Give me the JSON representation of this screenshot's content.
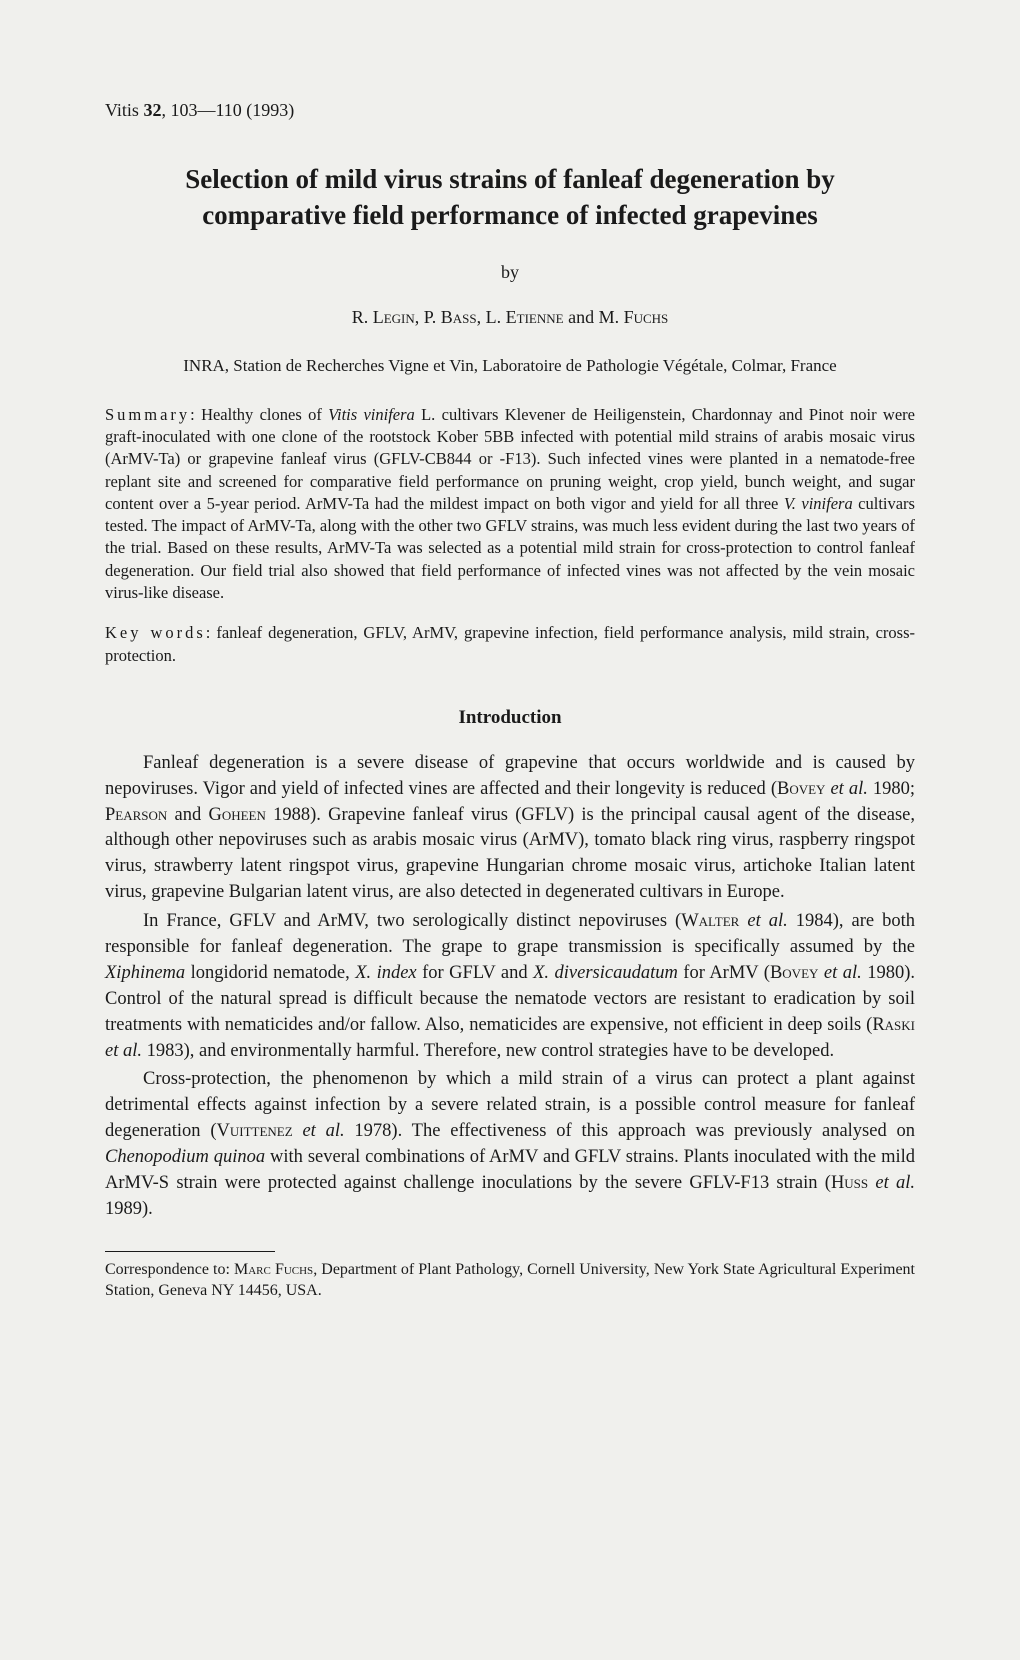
{
  "journal": {
    "name": "Vitis",
    "volume": "32",
    "pages": "103—110",
    "year": "(1993)"
  },
  "title": "Selection of mild virus strains of fanleaf degeneration by comparative field performance of infected grapevines",
  "byline": "by",
  "authors_html": "R. <span class=\"smallcaps\">Legin</span>, P. <span class=\"smallcaps\">Bass</span>, L. <span class=\"smallcaps\">Etienne</span> and M. <span class=\"smallcaps\">Fuchs</span>",
  "affiliation": "INRA, Station de Recherches Vigne et Vin, Laboratoire de Pathologie Végétale, Colmar, France",
  "summary_label": "Summary",
  "summary_html": ": Healthy clones of <span class=\"italic\">Vitis vinifera</span> L. cultivars Klevener de Heiligenstein, Chardonnay and Pinot noir were graft-inoculated with one clone of the rootstock Kober 5BB infected with potential mild strains of arabis mosaic virus (ArMV-Ta) or grapevine fanleaf virus (GFLV-CB844 or -F13). Such infected vines were planted in a nematode-free replant site and screened for comparative field performance on pruning weight, crop yield, bunch weight, and sugar content over a 5-year period. ArMV-Ta had the mildest impact on both vigor and yield for all three <span class=\"italic\">V. vinifera</span> cultivars tested. The impact of ArMV-Ta, along with the other two GFLV strains, was much less evident during the last two years of the trial. Based on these results, ArMV-Ta was selected as a potential mild strain for cross-protection to control fanleaf degeneration. Our field trial also showed that field performance of infected vines was not affected by the vein mosaic virus-like disease.",
  "keywords_label": "Key words",
  "keywords_text": ": fanleaf degeneration, GFLV, ArMV, grapevine infection, field performance analysis, mild strain, cross-protection.",
  "section_heading": "Introduction",
  "para1_html": "Fanleaf degeneration is a severe disease of grapevine that occurs worldwide and is caused by nepoviruses. Vigor and yield of infected vines are affected and their longevity is reduced (<span class=\"smallcaps\">Bovey</span> <span class=\"italic\">et al.</span> 1980; <span class=\"smallcaps\">Pearson</span> and <span class=\"smallcaps\">Goheen</span> 1988). Grapevine fanleaf virus (GFLV) is the principal causal agent of the disease, although other nepoviruses such as arabis mosaic virus (ArMV), tomato black ring virus, raspberry ringspot virus, strawberry latent ringspot virus, grapevine Hungarian chrome mosaic virus, artichoke Italian latent virus, grapevine Bulgarian latent virus, are also detected in degenerated cultivars in Europe.",
  "para2_html": "In France, GFLV and ArMV, two serologically distinct nepoviruses (<span class=\"smallcaps\">Walter</span> <span class=\"italic\">et al.</span> 1984), are both responsible for fanleaf degeneration. The grape to grape transmission is specifically assumed by the <span class=\"italic\">Xiphinema</span> longidorid nematode, <span class=\"italic\">X. index</span> for GFLV and <span class=\"italic\">X. diversicaudatum</span> for ArMV (<span class=\"smallcaps\">Bovey</span> <span class=\"italic\">et al.</span> 1980). Control of the natural spread is difficult because the nematode vectors are resistant to eradication by soil treatments with nematicides and/or fallow. Also, nematicides are expensive, not efficient in deep soils (<span class=\"smallcaps\">Raski</span> <span class=\"italic\">et al.</span> 1983), and environmentally harmful. Therefore, new control strategies have to be developed.",
  "para3_html": "Cross-protection, the phenomenon by which a mild strain of a virus can protect a plant against detrimental effects against infection by a severe related strain, is a possible control measure for fanleaf degeneration (<span class=\"smallcaps\">Vuittenez</span> <span class=\"italic\">et al.</span> 1978). The effectiveness of this approach was previously analysed on <span class=\"italic\">Chenopodium quinoa</span> with several combinations of ArMV and GFLV strains. Plants inoculated with the mild ArMV-S strain were protected against challenge inoculations by the severe GFLV-F13 strain (<span class=\"smallcaps\">Huss</span> <span class=\"italic\">et al.</span> 1989).",
  "footnote_html": "Correspondence to: <span class=\"smallcaps\">Marc Fuchs</span>, Department of Plant Pathology, Cornell University, New York State Agricultural Experiment Station, Geneva NY 14456, USA."
}
